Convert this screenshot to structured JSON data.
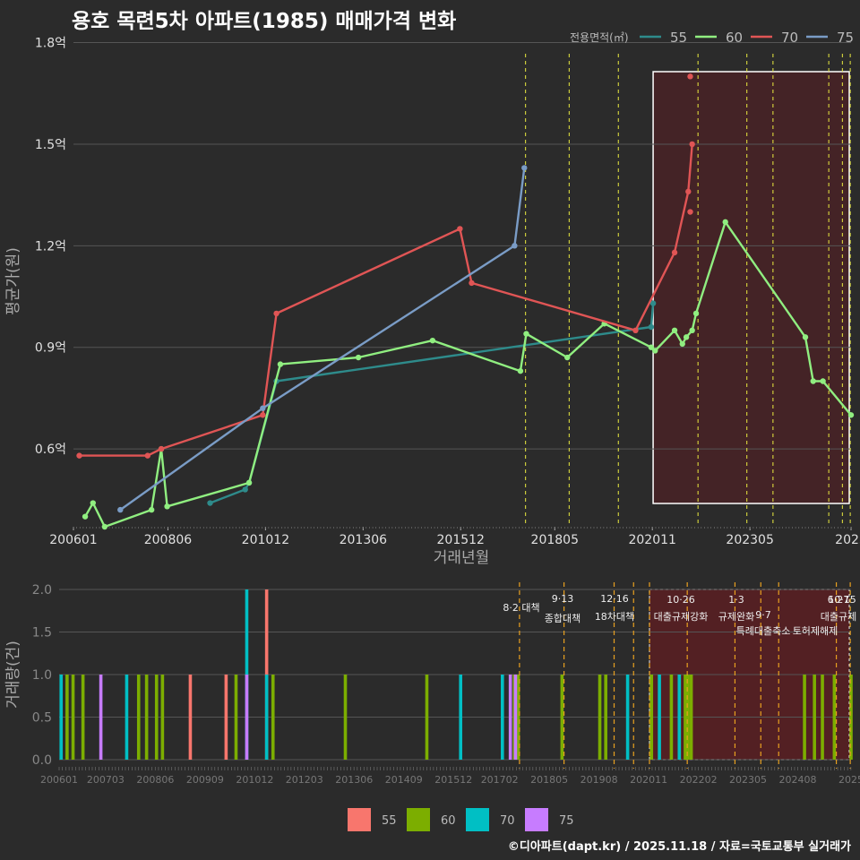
{
  "title": "용호 목련5차 아파트(1985) 매매가격 변화",
  "credit": "©디아파트(dapt.kr) / 2025.11.18 / 자료=국토교통부 실거래가",
  "colors": {
    "s55": "#2e8b8b",
    "s60": "#90ee80",
    "s70": "#e05555",
    "s75": "#7a9cc6",
    "b55": "#f8766d",
    "b60": "#7cae00",
    "b70": "#00bfc4",
    "b75": "#c77cff",
    "policy": "#e8e840",
    "highlight": "#5a1e22"
  },
  "chart_data": [
    {
      "type": "line",
      "title": "용호 목련5차 아파트(1985) 매매가격 변화",
      "xlabel": "거래년월",
      "ylabel": "평균가(원)",
      "legend_title": "전용면적(㎡)",
      "legend_position": "top-right",
      "xlim": [
        2006.0,
        2025.92
      ],
      "ylim": [
        0.37,
        1.82
      ],
      "y_unit": "억",
      "x_ticks": [
        "200601",
        "200806",
        "201012",
        "201306",
        "201512",
        "201805",
        "202011",
        "202305",
        "2025"
      ],
      "x_tick_values": [
        2006.0,
        2008.42,
        2010.92,
        2013.42,
        2015.92,
        2018.33,
        2020.83,
        2023.33,
        2025.92
      ],
      "y_ticks": [
        "0.6억",
        "0.9억",
        "1.2억",
        "1.5억",
        "1.8억"
      ],
      "y_tick_values": [
        0.6,
        0.9,
        1.2,
        1.5,
        1.8
      ],
      "highlight_x": [
        2020.85,
        2025.92
      ],
      "policy_lines": [
        2017.58,
        2018.7,
        2019.96,
        2022.0,
        2023.25,
        2023.92,
        2025.35,
        2025.7,
        2025.9
      ],
      "series": [
        {
          "name": "55",
          "points": [
            [
              2009.5,
              0.44
            ],
            [
              2010.4,
              0.48
            ],
            [
              2010.5,
              0.5
            ],
            [
              2011.2,
              0.8
            ],
            [
              2020.8,
              0.96
            ],
            [
              2020.85,
              1.03
            ]
          ]
        },
        {
          "name": "60",
          "points": [
            [
              2006.3,
              0.4
            ],
            [
              2006.5,
              0.44
            ],
            [
              2006.8,
              0.37
            ],
            [
              2008.0,
              0.42
            ],
            [
              2008.25,
              0.6
            ],
            [
              2008.4,
              0.43
            ],
            [
              2010.5,
              0.5
            ],
            [
              2011.3,
              0.85
            ],
            [
              2013.3,
              0.87
            ],
            [
              2015.2,
              0.92
            ],
            [
              2017.45,
              0.83
            ],
            [
              2017.6,
              0.94
            ],
            [
              2018.65,
              0.87
            ],
            [
              2019.6,
              0.97
            ],
            [
              2020.8,
              0.9
            ],
            [
              2020.9,
              0.89
            ],
            [
              2021.4,
              0.95
            ],
            [
              2021.6,
              0.91
            ],
            [
              2021.7,
              0.93
            ],
            [
              2021.85,
              0.95
            ],
            [
              2021.95,
              1.0
            ],
            [
              2022.7,
              1.27
            ],
            [
              2024.75,
              0.93
            ],
            [
              2024.95,
              0.8
            ],
            [
              2025.2,
              0.8
            ],
            [
              2025.92,
              0.7
            ]
          ]
        },
        {
          "name": "70",
          "points": [
            [
              2006.15,
              0.58
            ],
            [
              2007.9,
              0.58
            ],
            [
              2008.25,
              0.6
            ],
            [
              2010.85,
              0.7
            ],
            [
              2011.2,
              1.0
            ],
            [
              2015.9,
              1.25
            ],
            [
              2016.2,
              1.09
            ],
            [
              2020.4,
              0.95
            ],
            [
              2021.4,
              1.18
            ],
            [
              2021.75,
              1.36
            ],
            [
              2021.85,
              1.5
            ]
          ],
          "extra_points": [
            [
              2021.8,
              1.3
            ],
            [
              2021.8,
              1.7
            ]
          ]
        },
        {
          "name": "75",
          "points": [
            [
              2007.2,
              0.42
            ],
            [
              2010.85,
              0.72
            ],
            [
              2017.3,
              1.2
            ],
            [
              2017.55,
              1.43
            ]
          ]
        }
      ]
    },
    {
      "type": "bar",
      "xlabel": "",
      "ylabel": "거래량(건)",
      "legend_position": "bottom",
      "xlim": [
        2006.0,
        2025.92
      ],
      "ylim": [
        0,
        2.0
      ],
      "x_ticks": [
        "200601",
        "200703",
        "200806",
        "200909",
        "201012",
        "201203",
        "201306",
        "201409",
        "201512",
        "201702",
        "201805",
        "201908",
        "202011",
        "202202",
        "202305",
        "202408",
        "2025"
      ],
      "x_tick_values": [
        2006.0,
        2007.17,
        2008.42,
        2009.67,
        2010.92,
        2012.17,
        2013.42,
        2014.67,
        2015.92,
        2017.08,
        2018.33,
        2019.58,
        2020.83,
        2022.08,
        2023.33,
        2024.58,
        2025.92
      ],
      "y_ticks": [
        "0.0",
        "0.5",
        "1.0",
        "1.5",
        "2.0"
      ],
      "y_tick_values": [
        0,
        0.5,
        1.0,
        1.5,
        2.0
      ],
      "highlight_x": [
        2020.85,
        2025.92
      ],
      "policy_annotations": [
        {
          "x": 2017.58,
          "date": "8·2",
          "label": "8·2 대책"
        },
        {
          "x": 2018.7,
          "date": "9·13",
          "label": "종합대책"
        },
        {
          "x": 2019.96,
          "date": "12·16",
          "label": "18차대책"
        },
        {
          "x": 2020.45,
          "date": "",
          "label": ""
        },
        {
          "x": 2020.85,
          "date": "",
          "label": ""
        },
        {
          "x": 2021.8,
          "date": "10·26",
          "label": "대출규제강화"
        },
        {
          "x": 2023.0,
          "date": "1·3",
          "label": "규제완화"
        },
        {
          "x": 2023.65,
          "date": "9·7",
          "label": "특례대출축소"
        },
        {
          "x": 2024.1,
          "date": "",
          "label": "토허제해제"
        },
        {
          "x": 2025.55,
          "date": "6·27",
          "label": "대출규제"
        },
        {
          "x": 2025.9,
          "date": "10·15",
          "label": ""
        }
      ],
      "series": [
        {
          "name": "55",
          "bars": [
            [
              2009.3,
              1
            ],
            [
              2010.2,
              1
            ],
            [
              2011.22,
              2
            ],
            [
              2020.9,
              1
            ]
          ]
        },
        {
          "name": "60",
          "bars": [
            [
              2006.2,
              1
            ],
            [
              2006.35,
              1
            ],
            [
              2006.6,
              1
            ],
            [
              2008.0,
              1
            ],
            [
              2008.2,
              1
            ],
            [
              2008.45,
              1
            ],
            [
              2008.6,
              1
            ],
            [
              2010.45,
              1
            ],
            [
              2011.38,
              1
            ],
            [
              2013.2,
              1
            ],
            [
              2015.25,
              1
            ],
            [
              2017.45,
              1
            ],
            [
              2017.55,
              1
            ],
            [
              2018.65,
              1
            ],
            [
              2019.6,
              1
            ],
            [
              2019.75,
              1
            ],
            [
              2020.9,
              1
            ],
            [
              2021.4,
              1
            ],
            [
              2021.6,
              1
            ],
            [
              2021.75,
              1
            ],
            [
              2021.82,
              1
            ],
            [
              2021.9,
              1
            ],
            [
              2024.75,
              1
            ],
            [
              2025.0,
              1
            ],
            [
              2025.2,
              1
            ],
            [
              2025.5,
              1
            ],
            [
              2025.92,
              1
            ]
          ]
        },
        {
          "name": "70",
          "bars": [
            [
              2006.05,
              1
            ],
            [
              2007.7,
              1
            ],
            [
              2010.72,
              2
            ],
            [
              2011.22,
              1
            ],
            [
              2016.1,
              1
            ],
            [
              2017.15,
              1
            ],
            [
              2020.3,
              1
            ],
            [
              2021.1,
              1
            ],
            [
              2021.6,
              1
            ]
          ]
        },
        {
          "name": "75",
          "bars": [
            [
              2007.05,
              1
            ],
            [
              2010.72,
              1
            ],
            [
              2017.35,
              1
            ],
            [
              2017.48,
              1
            ]
          ]
        }
      ],
      "legend_entries": [
        "55",
        "60",
        "70",
        "75"
      ]
    }
  ]
}
